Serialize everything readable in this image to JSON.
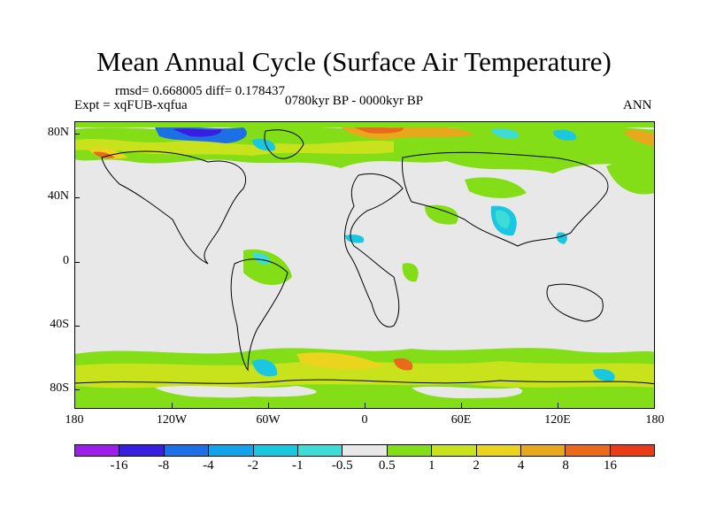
{
  "title": "Mean Annual Cycle (Surface Air Temperature)",
  "stats": "rmsd= 0.668005 diff= 0.178437",
  "period": "0780kyr BP - 0000kyr BP",
  "experiment": "Expt = xqFUB-xqfua",
  "season": "ANN",
  "y_ticks": [
    "80N",
    "40N",
    "0",
    "40S",
    "80S"
  ],
  "x_ticks": [
    "180",
    "120W",
    "60W",
    "0",
    "60E",
    "120E",
    "180"
  ],
  "colorbar": {
    "colors": [
      "#9b1fe8",
      "#3a1ee0",
      "#1d6fe6",
      "#13a3e8",
      "#19c8e0",
      "#3ddcd6",
      "#e8e8e8",
      "#83de18",
      "#c8e21c",
      "#ead41e",
      "#e8a81c",
      "#e86a1a",
      "#e83c16"
    ],
    "labels": [
      "-16",
      "-8",
      "-4",
      "-2",
      "-1",
      "-0.5",
      "0.5",
      "1",
      "2",
      "4",
      "8",
      "16"
    ]
  }
}
